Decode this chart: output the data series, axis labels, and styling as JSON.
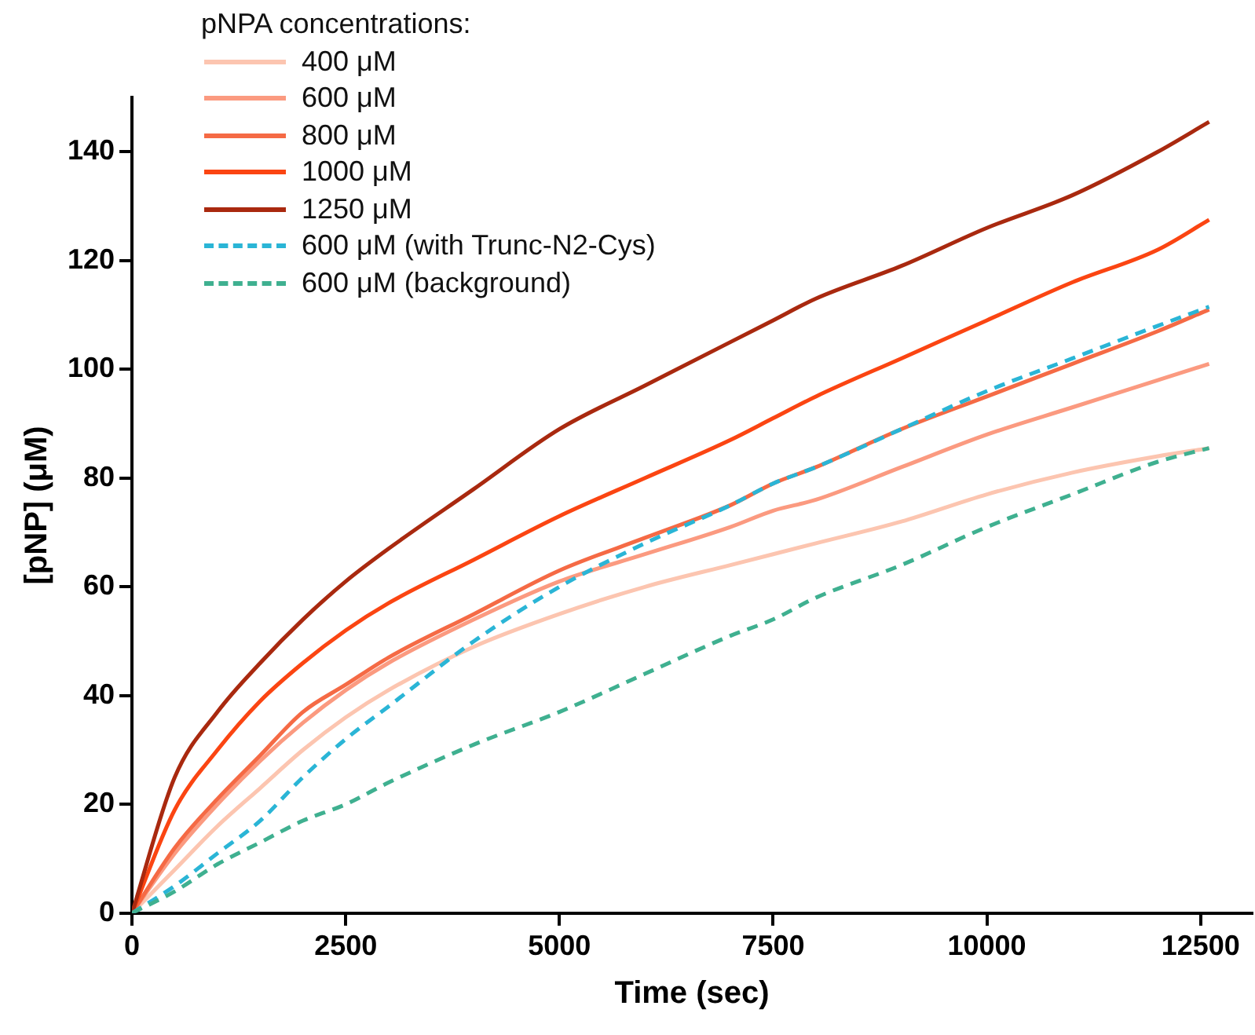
{
  "chart_data": {
    "type": "line",
    "xlabel": "Time (sec)",
    "ylabel": "[pNP] (μM)",
    "legend_title": "pNPA concentrations:",
    "legend": "top left",
    "grid": false,
    "marker": "none",
    "x": [
      0,
      500,
      1000,
      1500,
      2000,
      2500,
      3000,
      4000,
      5000,
      6000,
      7000,
      7500,
      8000,
      9000,
      10000,
      11000,
      12000,
      12600
    ],
    "xlim": [
      0,
      13100
    ],
    "xticks": [
      0,
      2500,
      5000,
      7500,
      10000,
      12500
    ],
    "ylim": [
      0,
      150
    ],
    "yticks": [
      0,
      20,
      40,
      60,
      80,
      100,
      120,
      140
    ],
    "series": [
      {
        "name": "400 μM",
        "color": "#fcc5b0",
        "line_style": "solid",
        "values": [
          0,
          8,
          16,
          23,
          30,
          36,
          41,
          49,
          55,
          60,
          64,
          66,
          68,
          72,
          77,
          81,
          84,
          85.5
        ]
      },
      {
        "name": "600 μM",
        "color": "#fb9a80",
        "line_style": "solid",
        "values": [
          0,
          11,
          20,
          28,
          35,
          41,
          46,
          54,
          61,
          66,
          71,
          74,
          76,
          82,
          88,
          93,
          98,
          101
        ]
      },
      {
        "name": "800 μM",
        "color": "#f56a45",
        "line_style": "solid",
        "values": [
          0,
          12,
          21,
          29,
          37,
          42,
          47,
          55,
          63,
          69,
          75,
          79,
          82,
          89,
          95,
          101,
          107,
          111
        ]
      },
      {
        "name": "1000 μM",
        "color": "#fb4512",
        "line_style": "solid",
        "values": [
          0,
          19,
          30,
          39,
          46,
          52,
          57,
          65,
          73,
          80,
          87,
          91,
          95,
          102,
          109,
          116,
          122,
          127.5
        ]
      },
      {
        "name": "1250 μM",
        "color": "#a9290f",
        "line_style": "solid",
        "values": [
          0,
          25,
          37,
          46,
          54,
          61,
          67,
          78,
          89,
          97,
          105,
          109,
          113,
          119,
          126,
          132,
          140,
          145.5
        ]
      },
      {
        "name": "600 μM (with Trunc-N2-Cys)",
        "color": "#2ab5d6",
        "line_style": "dashed",
        "values": [
          0,
          5,
          11,
          17,
          25,
          32,
          38,
          50,
          60,
          68,
          75,
          79,
          82,
          89,
          96,
          102,
          108,
          111.5
        ]
      },
      {
        "name": "600 μM (background)",
        "color": "#3fb090",
        "line_style": "dashed",
        "values": [
          0,
          4,
          9,
          13,
          17,
          20,
          24,
          31,
          37,
          44,
          51,
          54,
          58,
          64,
          71,
          77,
          83,
          85.5
        ]
      }
    ]
  }
}
